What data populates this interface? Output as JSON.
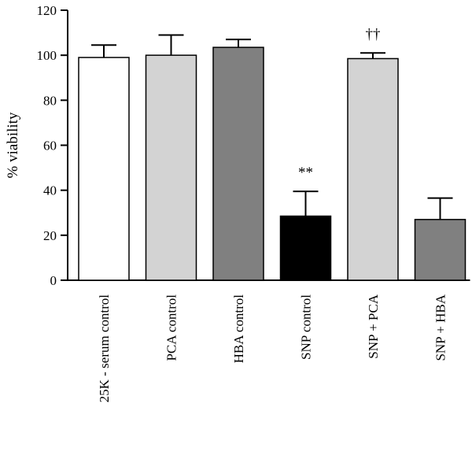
{
  "chart_data": {
    "type": "bar",
    "title": "",
    "xlabel": "",
    "ylabel": "% viability",
    "ylim": [
      0,
      120
    ],
    "yticks": [
      0,
      20,
      40,
      60,
      80,
      100,
      120
    ],
    "grid": false,
    "categories": [
      "25K - serum control",
      "PCA control",
      "HBA control",
      "SNP control",
      "SNP + PCA",
      "SNP + HBA"
    ],
    "values": [
      99,
      100,
      103.5,
      28.5,
      98.5,
      27
    ],
    "errors": [
      5.5,
      9,
      3.5,
      11,
      2.5,
      9.5
    ],
    "bar_colors": [
      "#ffffff",
      "#d3d3d3",
      "#808080",
      "#000000",
      "#d3d3d3",
      "#808080"
    ],
    "annotations": [
      "",
      "",
      "",
      "**",
      "††",
      ""
    ]
  }
}
